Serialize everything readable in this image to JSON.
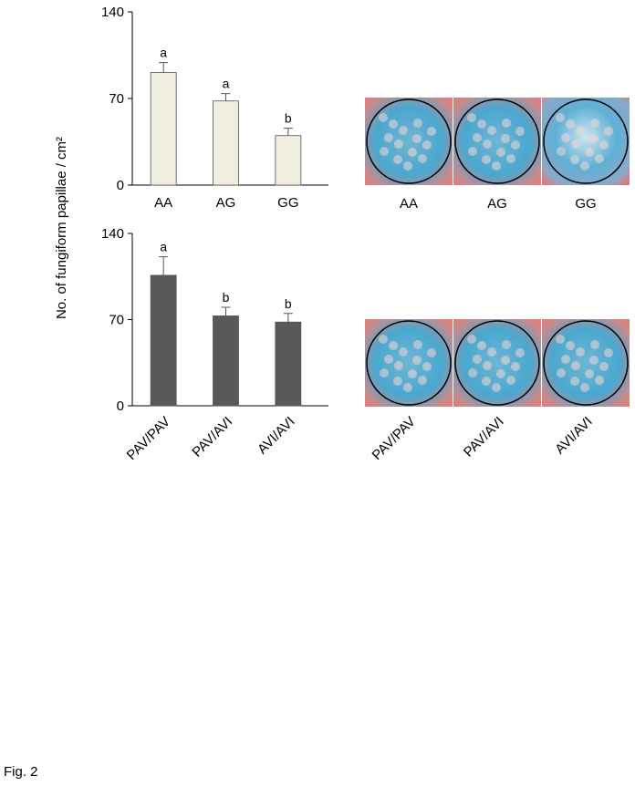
{
  "chart_data": [
    {
      "type": "bar",
      "y_label": "No. of fungiform papillae / cm²",
      "categories": [
        "AA",
        "AG",
        "GG"
      ],
      "values": [
        91,
        68,
        40
      ],
      "errors": [
        8,
        6,
        6
      ],
      "value_labels": [
        "a",
        "a",
        "b"
      ],
      "color": "#efeee0",
      "ylim": [
        0,
        140
      ],
      "yticks": [
        0,
        70,
        140
      ],
      "rotate_labels": false
    },
    {
      "type": "bar",
      "categories": [
        "PAV/PAV",
        "PAV/AVI",
        "AVI/AVI"
      ],
      "values": [
        106,
        73,
        68
      ],
      "errors": [
        15,
        7,
        7
      ],
      "value_labels": [
        "a",
        "b",
        "b"
      ],
      "color": "#595959",
      "ylim": [
        0,
        140
      ],
      "yticks": [
        0,
        70,
        140
      ],
      "rotate_labels": true
    }
  ],
  "photos": {
    "top_labels": [
      "AA",
      "AG",
      "GG"
    ],
    "bottom_labels": [
      "PAV/PAV",
      "PAV/AVI",
      "AVI/AVI"
    ]
  },
  "figure_label": "Fig. 2"
}
